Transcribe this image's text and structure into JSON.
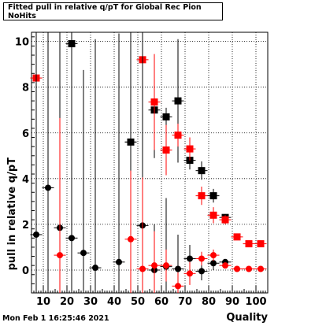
{
  "title": "Fitted pull in relative q/pT for Global Rec Pion NoHits",
  "timestamp": "Mon Feb  1 16:25:46 2021",
  "chart_data": {
    "type": "scatter",
    "title": "Fitted pull in relative q/pT for Global Rec Pion NoHits",
    "xlabel": "Quality",
    "ylabel": "pull in relative q/pT",
    "xlim": [
      5,
      105
    ],
    "ylim": [
      -1,
      10.4
    ],
    "xticks": [
      10,
      20,
      30,
      40,
      50,
      60,
      70,
      80,
      90,
      100
    ],
    "yticks": [
      0,
      2,
      4,
      6,
      8,
      10
    ],
    "grid": true,
    "series": [
      {
        "marker": "square",
        "color": "#000000",
        "points": [
          {
            "x": 22,
            "y": 9.9,
            "err": 0
          },
          {
            "x": 47,
            "y": 5.6,
            "err": 8
          },
          {
            "x": 57,
            "y": 7.0,
            "err": 2.1
          },
          {
            "x": 62,
            "y": 6.7,
            "err": 0.4
          },
          {
            "x": 67,
            "y": 7.4,
            "err": 2.7
          },
          {
            "x": 72,
            "y": 4.8,
            "err": 0.4
          },
          {
            "x": 77,
            "y": 4.35,
            "err": 0.4
          },
          {
            "x": 82,
            "y": 3.25,
            "err": 0.3
          },
          {
            "x": 87,
            "y": 2.3,
            "err": 0.15
          }
        ]
      },
      {
        "marker": "square",
        "color": "#ff0000",
        "points": [
          {
            "x": 7,
            "y": 8.4,
            "err": 0
          },
          {
            "x": 52,
            "y": 9.2,
            "err": 10
          },
          {
            "x": 57,
            "y": 7.35,
            "err": 2.1
          },
          {
            "x": 62,
            "y": 5.25,
            "err": 1.1
          },
          {
            "x": 67,
            "y": 5.9,
            "err": 0.5
          },
          {
            "x": 72,
            "y": 5.3,
            "err": 0.5
          },
          {
            "x": 77,
            "y": 3.25,
            "err": 0.4
          },
          {
            "x": 82,
            "y": 2.4,
            "err": 0.35
          },
          {
            "x": 87,
            "y": 2.2,
            "err": 0.2
          },
          {
            "x": 92,
            "y": 1.45,
            "err": 0
          },
          {
            "x": 97,
            "y": 1.15,
            "err": 0
          },
          {
            "x": 102,
            "y": 1.15,
            "err": 0
          }
        ]
      },
      {
        "marker": "circle",
        "color": "#000000",
        "points": [
          {
            "x": 7,
            "y": 1.55,
            "err": 10
          },
          {
            "x": 12,
            "y": 3.6,
            "err": 10
          },
          {
            "x": 17,
            "y": 1.85,
            "err": 10
          },
          {
            "x": 22,
            "y": 1.4,
            "err": 10
          },
          {
            "x": 27,
            "y": 0.75,
            "err": 8
          },
          {
            "x": 32,
            "y": 0.1,
            "err": 10
          },
          {
            "x": 42,
            "y": 0.35,
            "err": 10
          },
          {
            "x": 47,
            "y": 5.6,
            "err": 10
          },
          {
            "x": 52,
            "y": 1.95,
            "err": 10
          },
          {
            "x": 57,
            "y": 0.0,
            "err": 2
          },
          {
            "x": 62,
            "y": 0.15,
            "err": 3
          },
          {
            "x": 67,
            "y": 0.05,
            "err": 1.5
          },
          {
            "x": 72,
            "y": 0.5,
            "err": 0.6
          },
          {
            "x": 77,
            "y": -0.05,
            "err": 0.4
          },
          {
            "x": 82,
            "y": 0.3,
            "err": 0.3
          },
          {
            "x": 87,
            "y": 0.35,
            "err": 0.1
          }
        ]
      },
      {
        "marker": "circle",
        "color": "#ff0000",
        "points": [
          {
            "x": 17,
            "y": 0.65,
            "err": 6
          },
          {
            "x": 47,
            "y": 1.35,
            "err": 3
          },
          {
            "x": 52,
            "y": 0.05,
            "err": 4
          },
          {
            "x": 57,
            "y": 0.2,
            "err": 1.5
          },
          {
            "x": 62,
            "y": 0.2,
            "err": 0.7
          },
          {
            "x": 67,
            "y": -0.7,
            "err": 0.6
          },
          {
            "x": 72,
            "y": -0.15,
            "err": 0.5
          },
          {
            "x": 77,
            "y": 0.5,
            "err": 0.3
          },
          {
            "x": 82,
            "y": 0.65,
            "err": 0.25
          },
          {
            "x": 87,
            "y": 0.2,
            "err": 0.1
          },
          {
            "x": 92,
            "y": 0.05,
            "err": 0
          },
          {
            "x": 97,
            "y": 0.05,
            "err": 0
          },
          {
            "x": 102,
            "y": 0.05,
            "err": 0
          }
        ]
      }
    ]
  }
}
